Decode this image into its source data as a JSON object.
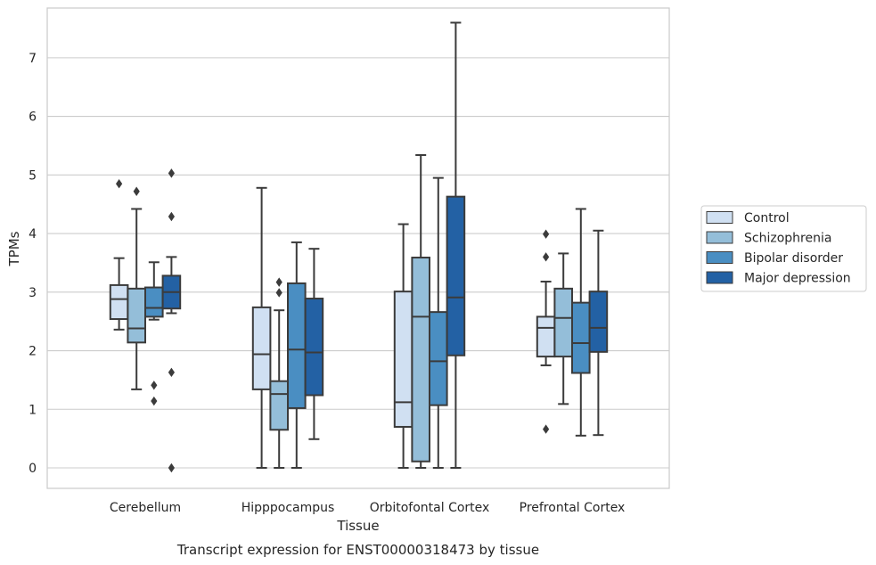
{
  "chart_data": {
    "type": "box",
    "xlabel": "Tissue",
    "ylabel": "TPMs",
    "caption": "Transcript expression for ENST00000318473 by tissue",
    "ylim": [
      -0.35,
      7.85
    ],
    "yticks": [
      0,
      1,
      2,
      3,
      4,
      5,
      6,
      7
    ],
    "grid": true,
    "legend_placement": "right",
    "categories": [
      "Cerebellum",
      "Hipppocampus",
      "Orbitofontal Cortex",
      "Prefrontal Cortex"
    ],
    "series": [
      {
        "name": "Control",
        "color": "#d0e0f2",
        "boxes": [
          {
            "whislo": 2.36,
            "q1": 2.54,
            "med": 2.88,
            "q3": 3.12,
            "whishi": 3.58,
            "fliers": [
              4.85
            ]
          },
          {
            "whislo": 0.0,
            "q1": 1.34,
            "med": 1.94,
            "q3": 2.74,
            "whishi": 4.78,
            "fliers": []
          },
          {
            "whislo": 0.0,
            "q1": 0.7,
            "med": 1.12,
            "q3": 3.01,
            "whishi": 4.16,
            "fliers": []
          },
          {
            "whislo": 1.75,
            "q1": 1.9,
            "med": 2.39,
            "q3": 2.58,
            "whishi": 3.18,
            "fliers": [
              3.99,
              3.6,
              0.66
            ]
          }
        ]
      },
      {
        "name": "Schizophrenia",
        "color": "#94bed9",
        "boxes": [
          {
            "whislo": 1.34,
            "q1": 2.14,
            "med": 2.38,
            "q3": 3.06,
            "whishi": 4.42,
            "fliers": [
              4.72
            ]
          },
          {
            "whislo": 0.0,
            "q1": 0.65,
            "med": 1.26,
            "q3": 1.48,
            "whishi": 2.69,
            "fliers": [
              3.17,
              2.99
            ]
          },
          {
            "whislo": 0.0,
            "q1": 0.11,
            "med": 2.58,
            "q3": 3.59,
            "whishi": 5.34,
            "fliers": []
          },
          {
            "whislo": 1.09,
            "q1": 1.9,
            "med": 2.56,
            "q3": 3.06,
            "whishi": 3.66,
            "fliers": []
          }
        ]
      },
      {
        "name": "Bipolar disorder",
        "color": "#4a8ec2",
        "boxes": [
          {
            "whislo": 2.53,
            "q1": 2.58,
            "med": 2.73,
            "q3": 3.08,
            "whishi": 3.51,
            "fliers": [
              1.41,
              1.14
            ]
          },
          {
            "whislo": 0.0,
            "q1": 1.02,
            "med": 2.02,
            "q3": 3.15,
            "whishi": 3.85,
            "fliers": []
          },
          {
            "whislo": 0.0,
            "q1": 1.07,
            "med": 1.82,
            "q3": 2.66,
            "whishi": 4.95,
            "fliers": []
          },
          {
            "whislo": 0.55,
            "q1": 1.62,
            "med": 2.13,
            "q3": 2.82,
            "whishi": 4.42,
            "fliers": []
          }
        ]
      },
      {
        "name": "Major depression",
        "color": "#2361a4",
        "boxes": [
          {
            "whislo": 2.64,
            "q1": 2.72,
            "med": 3.0,
            "q3": 3.28,
            "whishi": 3.6,
            "fliers": [
              5.03,
              4.29,
              1.63,
              0.0
            ]
          },
          {
            "whislo": 0.49,
            "q1": 1.24,
            "med": 1.97,
            "q3": 2.89,
            "whishi": 3.74,
            "fliers": []
          },
          {
            "whislo": 0.0,
            "q1": 1.92,
            "med": 2.91,
            "q3": 4.63,
            "whishi": 7.6,
            "fliers": []
          },
          {
            "whislo": 0.56,
            "q1": 1.98,
            "med": 2.39,
            "q3": 3.01,
            "whishi": 4.05,
            "fliers": []
          }
        ]
      }
    ]
  }
}
